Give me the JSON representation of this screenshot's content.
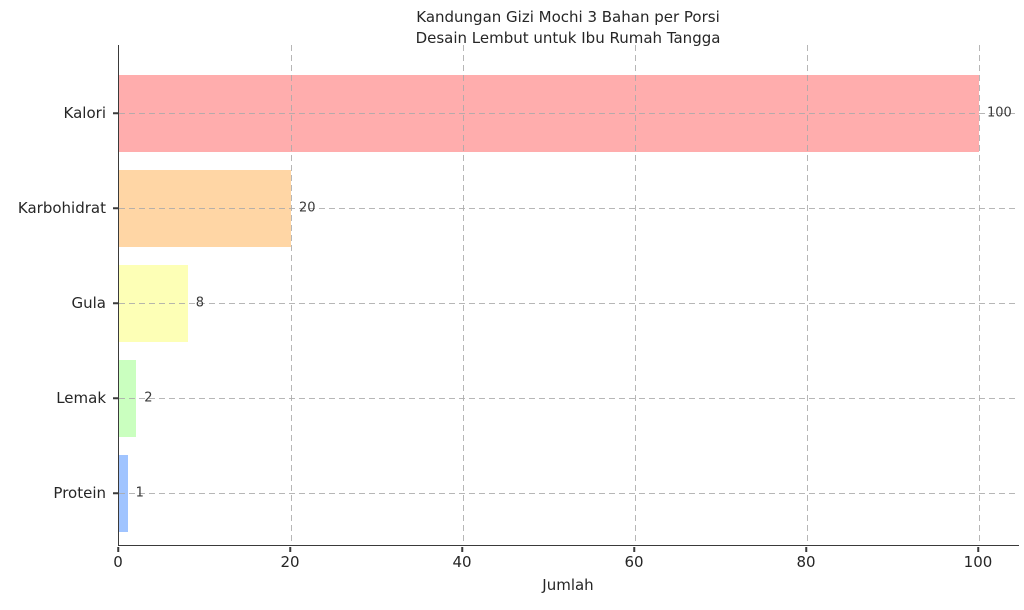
{
  "chart_data": {
    "type": "bar",
    "orientation": "horizontal",
    "title": "Kandungan Gizi Mochi 3 Bahan per Porsi\nDesain Lembut untuk Ibu Rumah Tangga",
    "title_line1": "Kandungan Gizi Mochi 3 Bahan per Porsi",
    "title_line2": "Desain Lembut untuk Ibu Rumah Tangga",
    "xlabel": "Jumlah",
    "ylabel": "",
    "categories": [
      "Kalori",
      "Karbohidrat",
      "Gula",
      "Lemak",
      "Protein"
    ],
    "values": [
      100,
      20,
      8,
      2,
      1
    ],
    "value_labels": [
      "100",
      "20",
      "8",
      "2",
      "1"
    ],
    "bar_colors": [
      "#FFADAD",
      "#FFD6A5",
      "#FDFFB6",
      "#CAFFBF",
      "#A0C4FF"
    ],
    "x_ticks": [
      0,
      20,
      40,
      60,
      80,
      100
    ],
    "x_tick_labels": [
      "0",
      "20",
      "40",
      "60",
      "80",
      "100"
    ],
    "xlim": [
      0,
      104.7
    ],
    "grid": "dashed both axes, drawn above bars",
    "legend": "none"
  },
  "colors": {
    "background": "#ffffff",
    "spine": "#3a3a3a",
    "grid": "#aaaaaa",
    "text": "#262626",
    "value_label": "#3a3a3a"
  }
}
